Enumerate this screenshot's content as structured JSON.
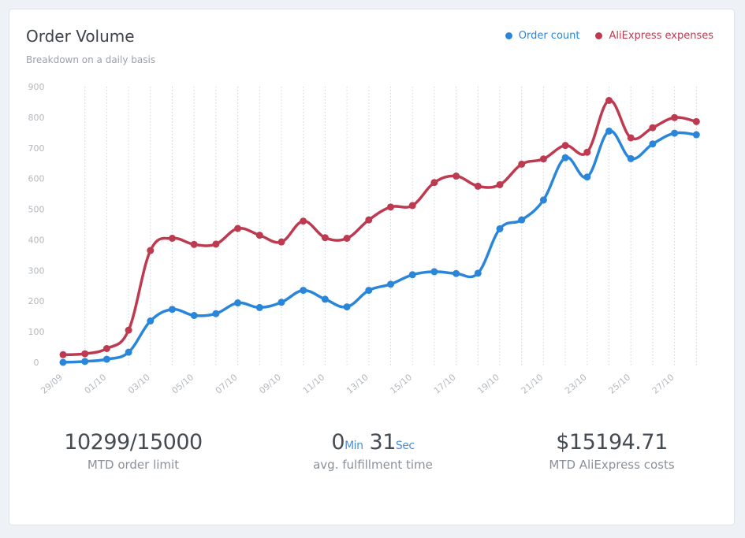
{
  "card": {
    "title": "Order Volume",
    "subtitle": "Breakdown on a daily basis"
  },
  "legend": [
    {
      "label": "Order count",
      "color": "#2a86d9"
    },
    {
      "label": "AliExpress expenses",
      "color": "#be3a50"
    }
  ],
  "chart_data": {
    "type": "line",
    "x": [
      "29/09",
      "30/09",
      "01/10",
      "02/10",
      "03/10",
      "04/10",
      "05/10",
      "06/10",
      "07/10",
      "08/10",
      "09/10",
      "10/10",
      "11/10",
      "12/10",
      "13/10",
      "14/10",
      "15/10",
      "16/10",
      "17/10",
      "18/10",
      "19/10",
      "20/10",
      "21/10",
      "22/10",
      "23/10",
      "24/10",
      "25/10",
      "26/10",
      "27/10",
      "28/10"
    ],
    "xtick_labels": [
      "29/09",
      "01/10",
      "03/10",
      "05/10",
      "07/10",
      "09/10",
      "11/10",
      "13/10",
      "15/10",
      "17/10",
      "19/10",
      "21/10",
      "23/10",
      "25/10",
      "27/10"
    ],
    "ylim": [
      0,
      900
    ],
    "yticks": [
      0,
      100,
      200,
      300,
      400,
      500,
      600,
      700,
      800,
      900
    ],
    "grid": "vertical dotted",
    "legend_position": "top-right",
    "series": [
      {
        "name": "Order count",
        "color": "#2a86d9",
        "values": [
          0,
          3,
          10,
          33,
          135,
          173,
          153,
          159,
          194,
          179,
          196,
          235,
          206,
          181,
          235,
          255,
          286,
          296,
          290,
          291,
          436,
          465,
          530,
          668,
          605,
          755,
          665,
          713,
          748,
          743
        ]
      },
      {
        "name": "AliExpress expenses",
        "color": "#be3a50",
        "values": [
          25,
          28,
          45,
          105,
          365,
          405,
          385,
          386,
          437,
          415,
          393,
          461,
          407,
          405,
          465,
          507,
          512,
          587,
          608,
          575,
          580,
          647,
          664,
          708,
          686,
          855,
          733,
          766,
          799,
          786
        ]
      }
    ]
  },
  "stats": [
    {
      "value": "10299/15000",
      "label": "MTD order limit"
    },
    {
      "value_min": "0",
      "unit_min": "Min",
      "value_sec": "31",
      "unit_sec": "Sec",
      "label": "avg. fulfillment time"
    },
    {
      "value": "$15194.71",
      "label": "MTD AliExpress costs"
    }
  ]
}
